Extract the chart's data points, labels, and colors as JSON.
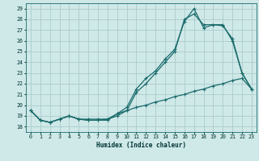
{
  "title": "",
  "xlabel": "Humidex (Indice chaleur)",
  "bg_color": "#cfe8e8",
  "grid_color": "#aacccc",
  "line_color": "#1a6b6b",
  "xlim": [
    -0.5,
    23.5
  ],
  "ylim": [
    17.5,
    29.5
  ],
  "xticks": [
    0,
    1,
    2,
    3,
    4,
    5,
    6,
    7,
    8,
    9,
    10,
    11,
    12,
    13,
    14,
    15,
    16,
    17,
    18,
    19,
    20,
    21,
    22,
    23
  ],
  "yticks": [
    18,
    19,
    20,
    21,
    22,
    23,
    24,
    25,
    26,
    27,
    28,
    29
  ],
  "line1_x": [
    0,
    1,
    2,
    3,
    4,
    5,
    6,
    7,
    8,
    9,
    10,
    11,
    12,
    13,
    14,
    15,
    16,
    17,
    18,
    19,
    20,
    21,
    22,
    23
  ],
  "line1_y": [
    19.5,
    18.6,
    18.4,
    18.7,
    19.0,
    18.7,
    18.6,
    18.6,
    18.6,
    19.2,
    19.8,
    21.5,
    22.5,
    23.2,
    24.3,
    25.2,
    27.8,
    29.0,
    27.2,
    27.5,
    27.4,
    26.2,
    23.0,
    21.5
  ],
  "line2_x": [
    0,
    1,
    2,
    3,
    4,
    5,
    6,
    7,
    8,
    9,
    10,
    11,
    12,
    13,
    14,
    15,
    16,
    17,
    18,
    19,
    20,
    21,
    22,
    23
  ],
  "line2_y": [
    19.5,
    18.6,
    18.4,
    18.7,
    19.0,
    18.7,
    18.6,
    18.6,
    18.7,
    19.2,
    19.5,
    21.2,
    22.0,
    23.0,
    24.0,
    25.0,
    28.0,
    28.5,
    27.5,
    27.5,
    27.5,
    26.0,
    23.0,
    21.5
  ],
  "line3_x": [
    0,
    1,
    2,
    3,
    4,
    5,
    6,
    7,
    8,
    9,
    10,
    11,
    12,
    13,
    14,
    15,
    16,
    17,
    18,
    19,
    20,
    21,
    22,
    23
  ],
  "line3_y": [
    19.5,
    18.6,
    18.4,
    18.7,
    19.0,
    18.7,
    18.7,
    18.7,
    18.7,
    19.0,
    19.5,
    19.8,
    20.0,
    20.3,
    20.5,
    20.8,
    21.0,
    21.3,
    21.5,
    21.8,
    22.0,
    22.3,
    22.5,
    21.5
  ]
}
